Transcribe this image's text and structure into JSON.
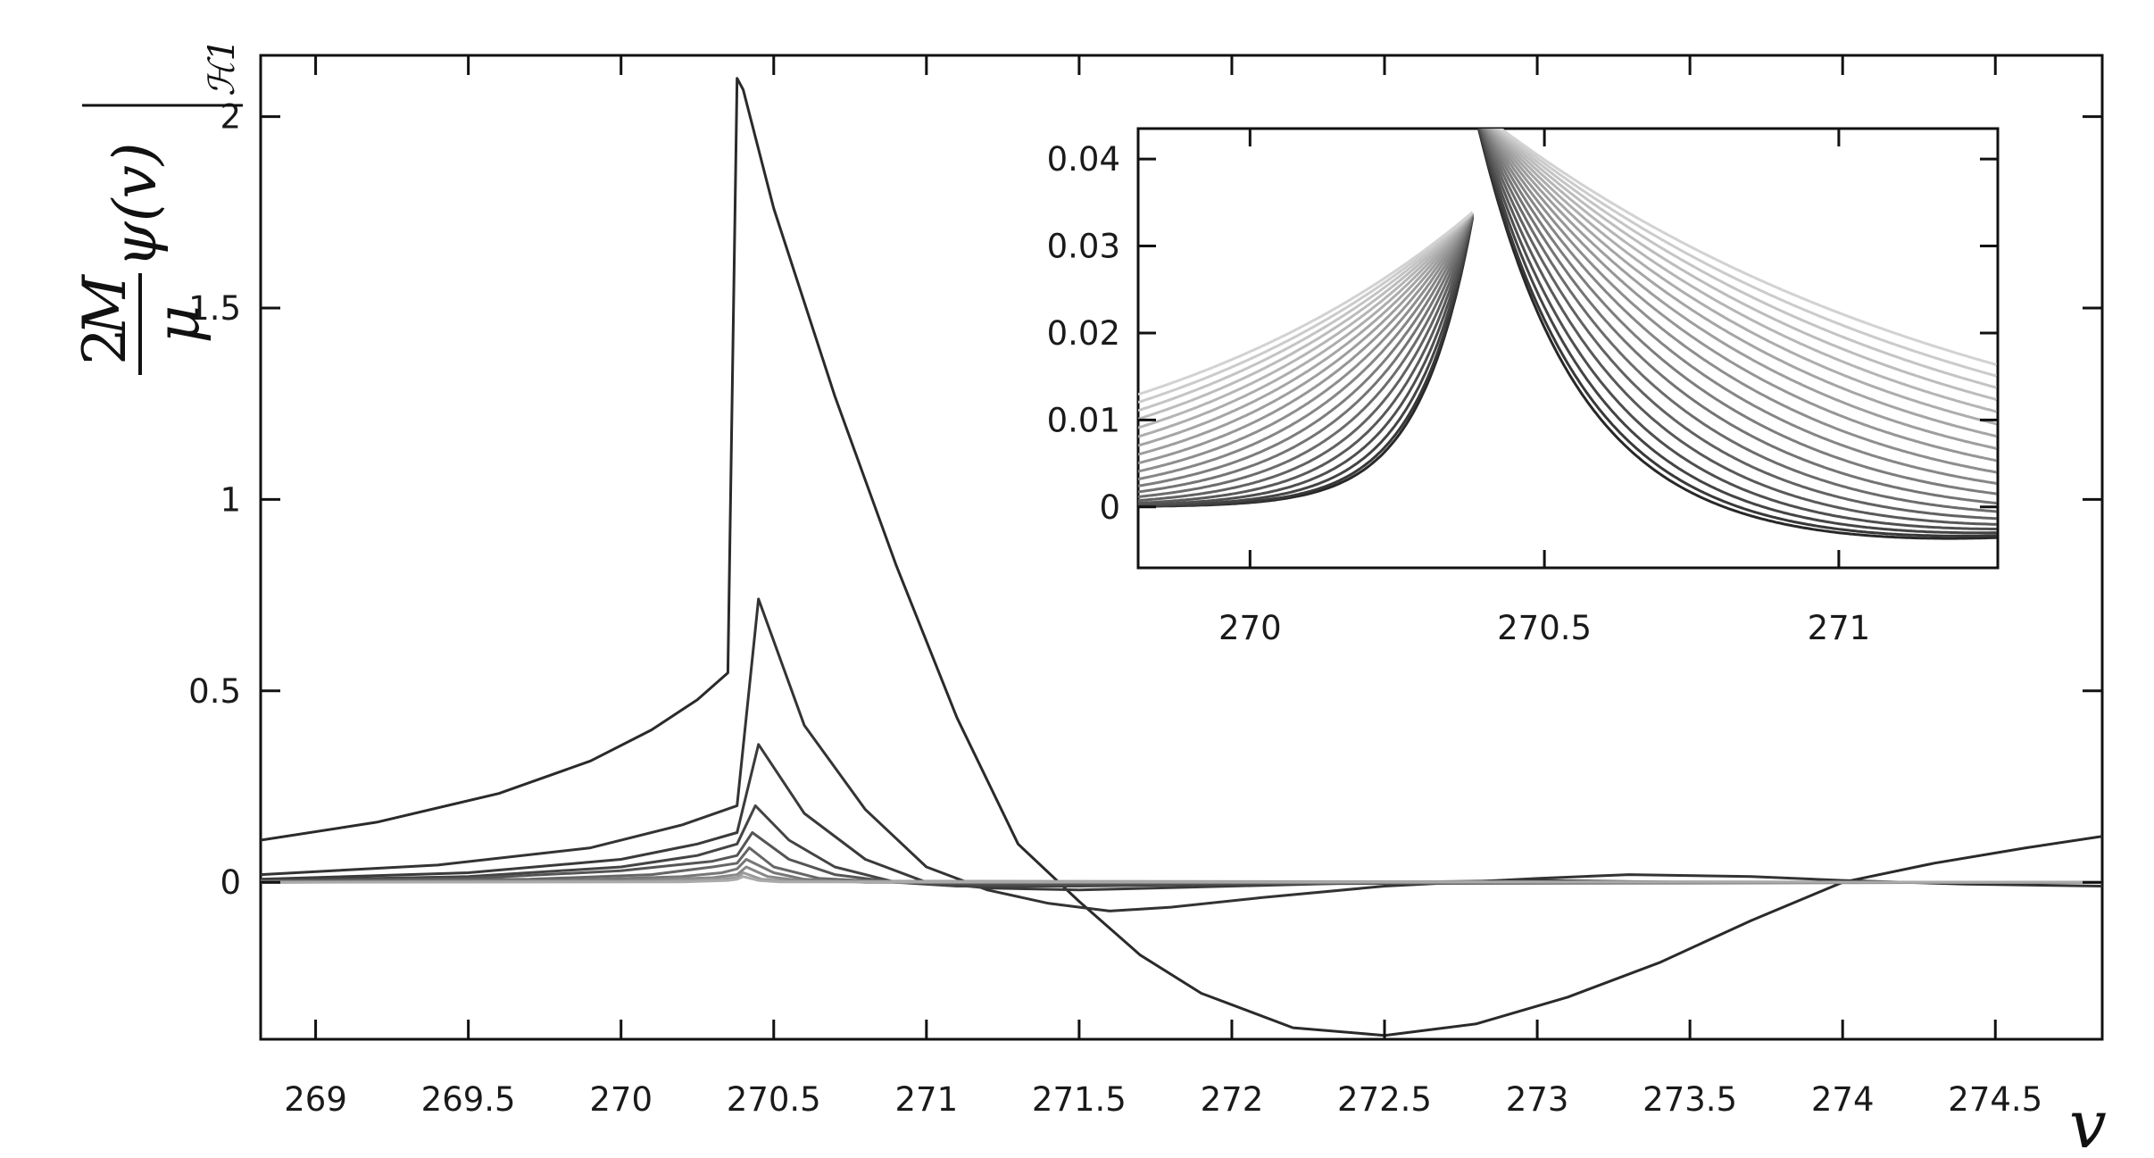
{
  "chart_data": [
    {
      "type": "line",
      "panel": "main",
      "title": "",
      "xlabel": "v",
      "ylabel": {
        "numerator": "2M",
        "denominator": "μ",
        "function": "ψ(v)",
        "subscript": "ℋ1"
      },
      "xlim": [
        268.82,
        274.85
      ],
      "ylim": [
        -0.41,
        2.16
      ],
      "xticks": [
        "269",
        "269.5",
        "270",
        "270.5",
        "271",
        "271.5",
        "272",
        "272.5",
        "273",
        "273.5",
        "274",
        "274.5"
      ],
      "yticks": [
        "0",
        "0.5",
        "1",
        "1.5",
        "2"
      ],
      "grid": false,
      "legend": "none",
      "peak_v": 270.38,
      "series": [
        {
          "color": "#2a2a2a",
          "x": [
            268.82,
            269.2,
            269.6,
            269.9,
            270.1,
            270.25,
            270.35,
            270.38,
            270.4,
            270.5,
            270.7,
            270.9,
            271.1,
            271.3,
            271.5,
            271.7,
            271.9,
            272.2,
            272.5,
            272.8,
            273.1,
            273.4,
            273.7,
            274.0,
            274.3,
            274.6,
            274.85
          ],
          "y": [
            0.11,
            0.157,
            0.232,
            0.317,
            0.398,
            0.477,
            0.547,
            2.1,
            2.07,
            1.76,
            1.27,
            0.83,
            0.43,
            0.1,
            -0.05,
            -0.19,
            -0.29,
            -0.38,
            -0.4,
            -0.37,
            -0.3,
            -0.21,
            -0.1,
            0.0,
            0.05,
            0.09,
            0.12
          ]
        },
        {
          "color": "#333333",
          "x": [
            268.82,
            269.4,
            269.9,
            270.2,
            270.38,
            270.45,
            270.6,
            270.8,
            271.0,
            271.2,
            271.4,
            271.6,
            271.8,
            272.1,
            272.5,
            273.0,
            273.3,
            273.7,
            274.0,
            274.4,
            274.85
          ],
          "y": [
            0.02,
            0.045,
            0.09,
            0.15,
            0.2,
            0.74,
            0.41,
            0.19,
            0.04,
            -0.02,
            -0.055,
            -0.075,
            -0.065,
            -0.04,
            -0.01,
            0.01,
            0.02,
            0.015,
            0.005,
            -0.005,
            -0.01
          ]
        },
        {
          "color": "#3a3a3a",
          "x": [
            268.82,
            269.5,
            270.0,
            270.25,
            270.38,
            270.45,
            270.6,
            270.8,
            271.0,
            271.2,
            271.5,
            272.0,
            272.5,
            273.0,
            273.5,
            274.0,
            274.85
          ],
          "y": [
            0.008,
            0.025,
            0.06,
            0.1,
            0.13,
            0.36,
            0.18,
            0.06,
            0.0,
            -0.015,
            -0.02,
            -0.01,
            0.0,
            0.005,
            0.0,
            0.0,
            0.0
          ]
        },
        {
          "color": "#444444",
          "x": [
            268.82,
            269.5,
            270.0,
            270.25,
            270.38,
            270.44,
            270.55,
            270.7,
            270.9,
            271.1,
            271.5,
            272.5,
            274.85
          ],
          "y": [
            0.005,
            0.015,
            0.04,
            0.07,
            0.1,
            0.2,
            0.11,
            0.04,
            0.0,
            -0.01,
            -0.01,
            0.0,
            0.0
          ]
        },
        {
          "color": "#555555",
          "x": [
            268.82,
            269.5,
            270.0,
            270.3,
            270.38,
            270.43,
            270.55,
            270.7,
            270.9,
            271.2,
            274.85
          ],
          "y": [
            0.003,
            0.01,
            0.03,
            0.055,
            0.07,
            0.13,
            0.06,
            0.02,
            0.0,
            -0.005,
            0.0
          ]
        },
        {
          "color": "#666666",
          "x": [
            268.82,
            269.7,
            270.1,
            270.3,
            270.38,
            270.42,
            270.5,
            270.65,
            270.9,
            274.85
          ],
          "y": [
            0.002,
            0.008,
            0.02,
            0.04,
            0.05,
            0.09,
            0.04,
            0.01,
            0.0,
            0.0
          ]
        },
        {
          "color": "#777777",
          "x": [
            268.82,
            269.8,
            270.2,
            270.33,
            270.38,
            270.41,
            270.5,
            270.6,
            270.8,
            274.85
          ],
          "y": [
            0.001,
            0.005,
            0.015,
            0.025,
            0.035,
            0.06,
            0.025,
            0.008,
            0.0,
            0.0
          ]
        },
        {
          "color": "#888888",
          "x": [
            268.82,
            270.0,
            270.3,
            270.38,
            270.41,
            270.48,
            270.6,
            274.85
          ],
          "y": [
            0.0,
            0.004,
            0.012,
            0.02,
            0.04,
            0.015,
            0.003,
            0.0
          ]
        },
        {
          "color": "#999999",
          "x": [
            268.82,
            270.1,
            270.33,
            270.38,
            270.4,
            270.46,
            270.55,
            274.85
          ],
          "y": [
            0.0,
            0.002,
            0.008,
            0.012,
            0.025,
            0.008,
            0.002,
            0.0
          ]
        },
        {
          "color": "#aaaaaa",
          "x": [
            268.82,
            270.2,
            270.35,
            270.38,
            270.4,
            270.45,
            270.52,
            274.85
          ],
          "y": [
            0.0,
            0.001,
            0.005,
            0.008,
            0.015,
            0.005,
            0.001,
            0.0
          ]
        }
      ]
    },
    {
      "type": "line",
      "panel": "inset",
      "title": "",
      "xlim": [
        269.81,
        271.27
      ],
      "ylim": [
        -0.007,
        0.0435
      ],
      "xticks": [
        "270",
        "270.5",
        "271"
      ],
      "yticks": [
        "0",
        "0.01",
        "0.02",
        "0.03",
        "0.04"
      ],
      "grid": false,
      "legend": "none",
      "peak_v": 270.38,
      "decay_count": 20,
      "base_height": 0.034
    }
  ]
}
